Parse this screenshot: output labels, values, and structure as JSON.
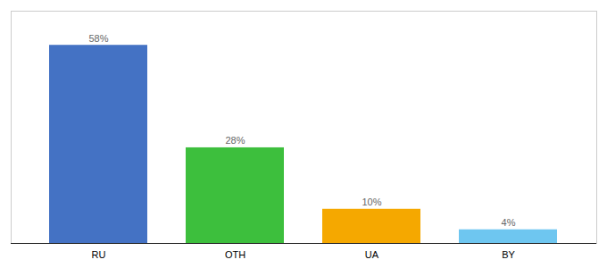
{
  "chart_data": {
    "type": "bar",
    "categories": [
      "RU",
      "OTH",
      "UA",
      "BY"
    ],
    "values": [
      58,
      28,
      10,
      4
    ],
    "value_labels": [
      "58%",
      "28%",
      "10%",
      "4%"
    ],
    "colors": [
      "#4472c4",
      "#3dbf3d",
      "#f5a800",
      "#6ec6f0"
    ],
    "ylim": [
      0,
      68
    ],
    "data_labels": true,
    "tick_labels": "x",
    "grid": false
  }
}
